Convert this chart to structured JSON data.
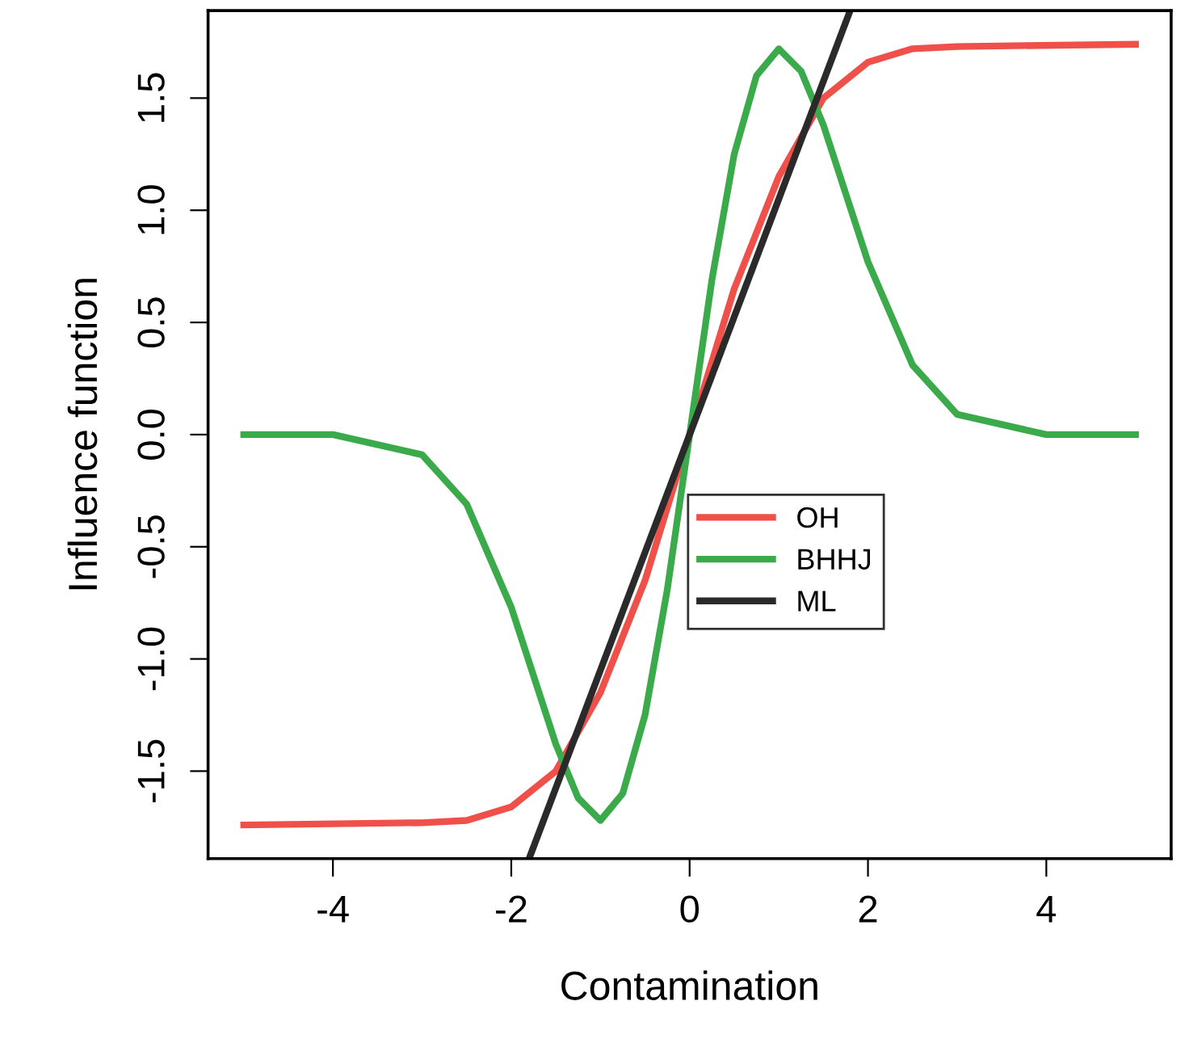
{
  "chart_data": {
    "type": "line",
    "xlabel": "Contamination",
    "ylabel": "Influence function",
    "xlim": [
      -5.4,
      5.4
    ],
    "ylim": [
      -1.89,
      1.89
    ],
    "xticks": [
      -4,
      -2,
      0,
      2,
      4
    ],
    "yticks": [
      {
        "value": -1.5,
        "label": "-1.5"
      },
      {
        "value": -1.0,
        "label": "-1.0"
      },
      {
        "value": -0.5,
        "label": "-0.5"
      },
      {
        "value": 0.0,
        "label": "0.0"
      },
      {
        "value": 0.5,
        "label": "0.5"
      },
      {
        "value": 1.0,
        "label": "1.0"
      },
      {
        "value": 1.5,
        "label": "1.5"
      }
    ],
    "grid": false,
    "legend": "center right",
    "marker": "none",
    "line_style": "solid",
    "series": [
      {
        "name": "OH",
        "color": "#f0504a",
        "x": [
          -5,
          -3,
          -2.5,
          -2,
          -1.5,
          -1,
          -0.5,
          0,
          0.5,
          1,
          1.5,
          2,
          2.5,
          3,
          5
        ],
        "values": [
          -1.74,
          -1.73,
          -1.72,
          -1.66,
          -1.5,
          -1.15,
          -0.65,
          0,
          0.65,
          1.15,
          1.5,
          1.66,
          1.72,
          1.73,
          1.74
        ]
      },
      {
        "name": "BHHJ",
        "color": "#3aaa4a",
        "x": [
          -5,
          -4,
          -3,
          -2.5,
          -2,
          -1.5,
          -1.25,
          -1,
          -0.75,
          -0.5,
          -0.25,
          0,
          0.25,
          0.5,
          0.75,
          1,
          1.25,
          1.5,
          2,
          2.5,
          3,
          4,
          5
        ],
        "values": [
          0,
          0,
          -0.09,
          -0.31,
          -0.77,
          -1.38,
          -1.62,
          -1.72,
          -1.6,
          -1.25,
          -0.69,
          0,
          0.69,
          1.25,
          1.6,
          1.72,
          1.62,
          1.38,
          0.77,
          0.31,
          0.09,
          0,
          0
        ]
      },
      {
        "name": "ML",
        "color": "#2a2a2a",
        "x": [
          -1.8,
          1.8
        ],
        "values": [
          -1.89,
          1.89
        ]
      }
    ]
  }
}
